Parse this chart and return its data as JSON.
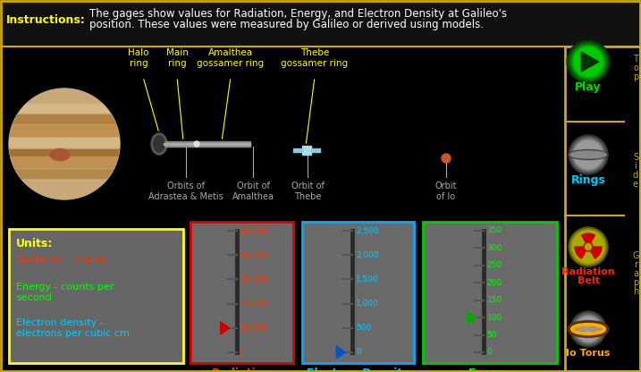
{
  "bg_color": "#000000",
  "border_color": "#ccaa00",
  "instruction_label": "Instructions:",
  "instruction_line1": "The gages show values for Radiation, Energy, and Electron Density at Galileo's",
  "instruction_line2": "position. These values were measured by Galileo or derived using models.",
  "ring_label_color": "#ffff00",
  "orbit_label_color": "#aaaaaa",
  "units_box_border": "#ffff00",
  "units_title": "Units:",
  "units_title_color": "#ffff00",
  "units_radiation": "Radiation - counts",
  "units_radiation_color": "#ff3300",
  "units_energy": "Energy - counts per\nsecond",
  "units_energy_color": "#00ff00",
  "units_electron": "Electron density -\nelectrons per cubic cm",
  "units_electron_color": "#00ccff",
  "gauge1_title": "Radiation",
  "gauge1_color": "#ff3300",
  "gauge1_border": "#dd0000",
  "gauge1_ticks": [
    0,
    10000,
    20000,
    30000,
    40000,
    50000
  ],
  "gauge1_tick_labels": [
    "0",
    "10,000",
    "20,000",
    "30,000",
    "40,000",
    "50,000"
  ],
  "gauge1_value": 10000,
  "gauge1_arrow_color": "#cc0000",
  "gauge2_title": "Electron Density",
  "gauge2_color": "#00ccff",
  "gauge2_border": "#00aaff",
  "gauge2_ticks": [
    0,
    500,
    1000,
    1500,
    2000,
    2500
  ],
  "gauge2_tick_labels": [
    "0",
    "500",
    "1,000",
    "1,500",
    "2,000",
    "2,500"
  ],
  "gauge2_value": 0,
  "gauge2_arrow_color": "#0055cc",
  "gauge3_title": "Energy",
  "gauge3_color": "#00ff00",
  "gauge3_border": "#00cc00",
  "gauge3_ticks": [
    0,
    50,
    100,
    150,
    200,
    250,
    300,
    350
  ],
  "gauge3_tick_labels": [
    "0",
    "50",
    "100",
    "150",
    "200",
    "250",
    "300",
    "350"
  ],
  "gauge3_value": 100,
  "gauge3_arrow_color": "#00aa00",
  "sidebar_play_color": "#00dd00",
  "sidebar_rings_color": "#00ccff",
  "sidebar_rad_color": "#ff2200",
  "sidebar_io_color": "#ffaa00",
  "sidebar_text_color": "#ccaa00"
}
